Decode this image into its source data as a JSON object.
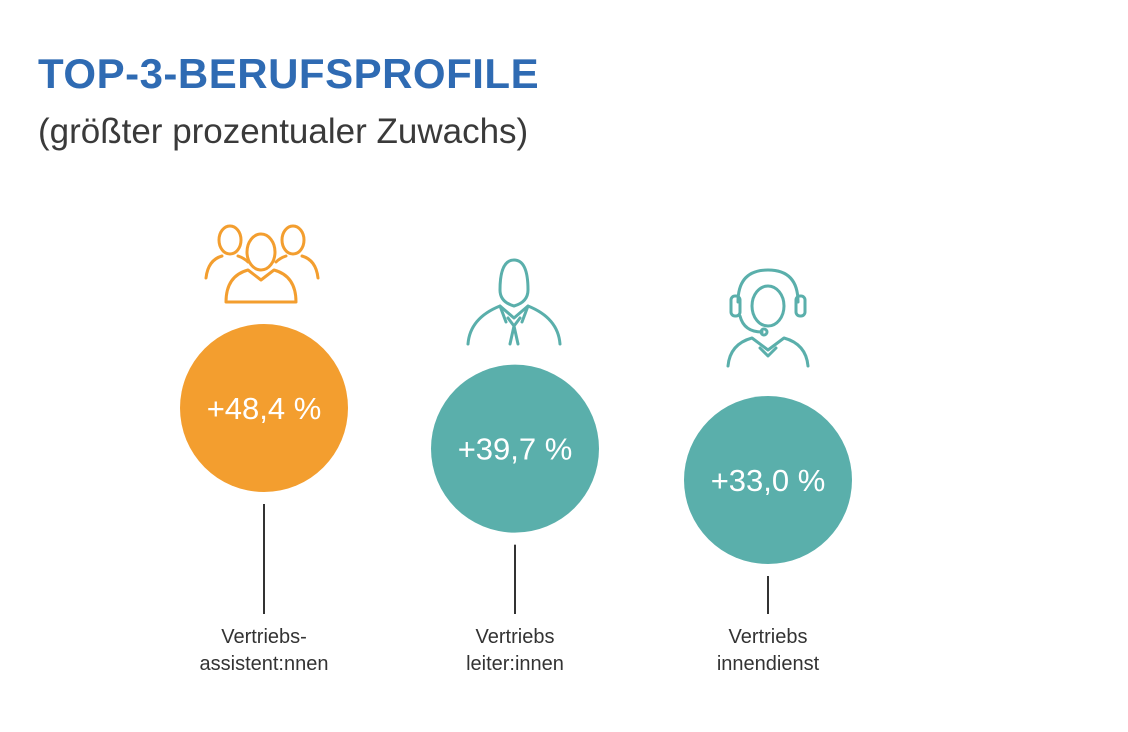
{
  "chart_data": {
    "type": "bubble",
    "title": "TOP-3-BERUFSPROFILE",
    "subtitle": "(größter prozentualer Zuwachs)",
    "unit": "%",
    "items": [
      {
        "label_line1": "Vertriebs-",
        "label_line2": "assistent:nnen",
        "value": 48.4,
        "display": "+48,4 %",
        "color": "#f39e2f",
        "icon": "group-icon"
      },
      {
        "label_line1": "Vertriebs",
        "label_line2": "leiter:innen",
        "value": 39.7,
        "display": "+39,7 %",
        "color": "#5aafab",
        "icon": "businessperson-icon"
      },
      {
        "label_line1": "Vertriebs",
        "label_line2": "innendienst",
        "value": 33.0,
        "display": "+33,0 %",
        "color": "#5aafab",
        "icon": "headset-agent-icon"
      }
    ]
  }
}
